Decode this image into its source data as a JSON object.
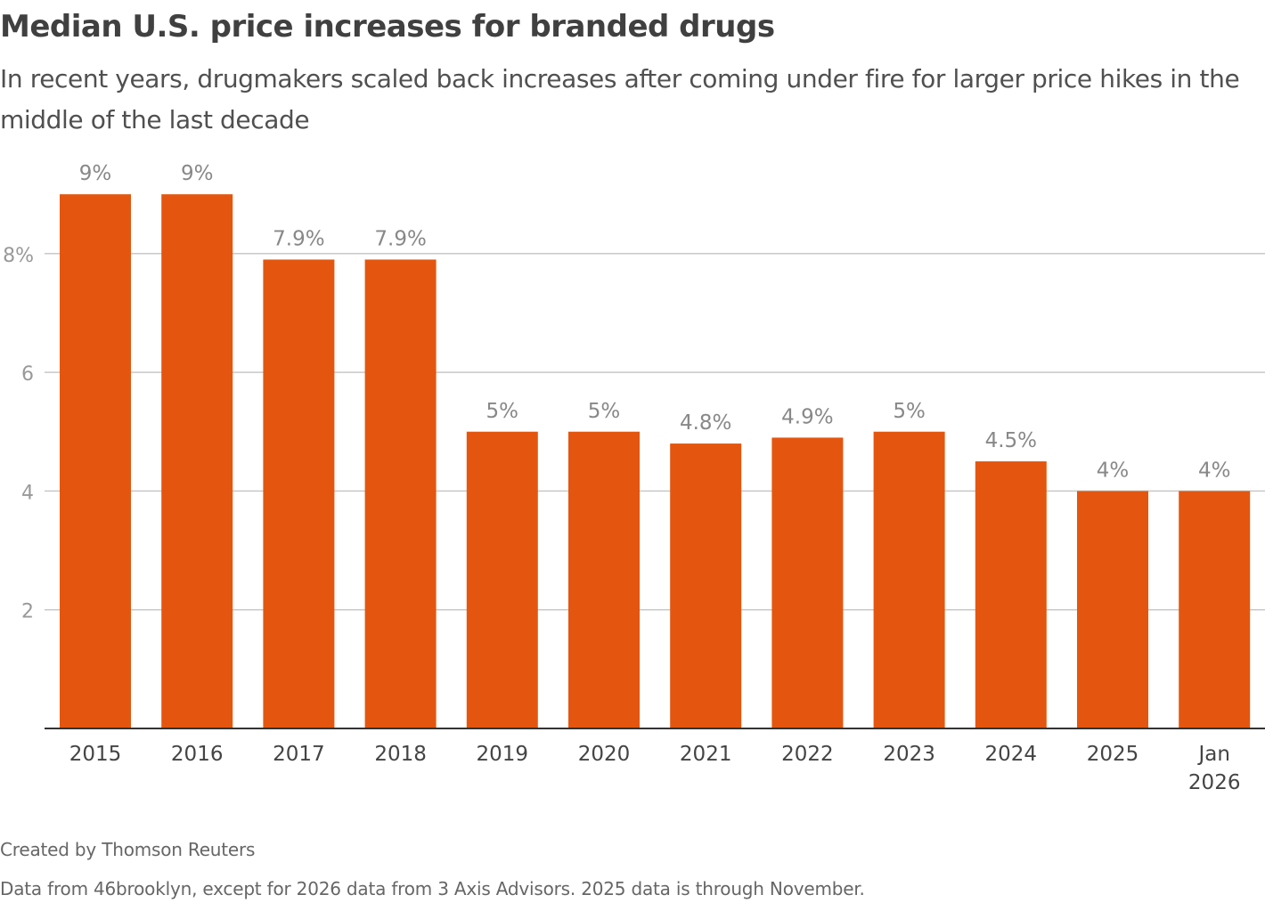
{
  "title": "Median U.S. price increases for branded drugs",
  "subtitle": "In recent years, drugmakers scaled back increases after coming under fire for larger price hikes in the middle of the last decade",
  "credit": "Created by Thomson Reuters",
  "source": "Data from 46brooklyn, except for 2026 data from 3 Axis Advisors. 2025 data is through November.",
  "chart_data": {
    "type": "bar",
    "categories": [
      "2015",
      "2016",
      "2017",
      "2018",
      "2019",
      "2020",
      "2021",
      "2022",
      "2023",
      "2024",
      "2025",
      "Jan 2026"
    ],
    "values": [
      9,
      9,
      7.9,
      7.9,
      5,
      5,
      4.8,
      4.9,
      5,
      4.5,
      4,
      4
    ],
    "data_labels": [
      "9%",
      "9%",
      "7.9%",
      "7.9%",
      "5%",
      "5%",
      "4.8%",
      "4.9%",
      "5%",
      "4.5%",
      "4%",
      "4%"
    ],
    "yticks": [
      2,
      4,
      6,
      8
    ],
    "ytick_labels": [
      "2",
      "4",
      "6",
      "8%"
    ],
    "ylim": [
      0,
      9
    ],
    "grid": true,
    "colors": {
      "bar": "#e4560f",
      "grid": "#c8c8c8",
      "label": "#888888"
    }
  }
}
